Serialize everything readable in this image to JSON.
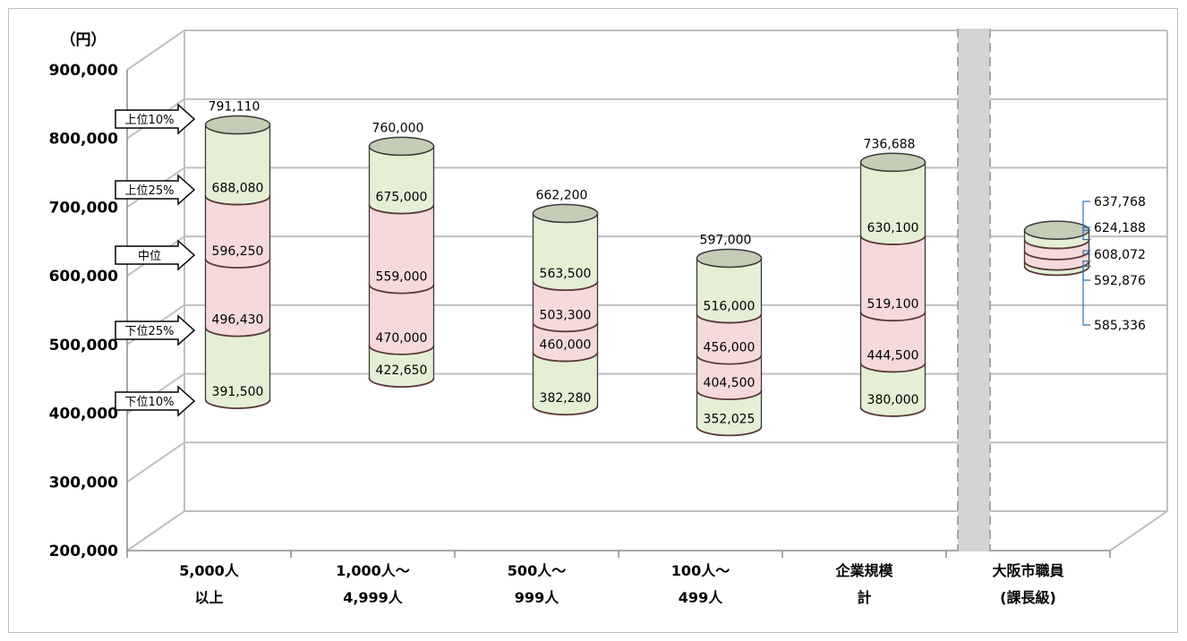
{
  "chart_data": {
    "type": "bar",
    "unit_label": "（円）",
    "yticks": [
      "900,000",
      "800,000",
      "700,000",
      "600,000",
      "500,000",
      "400,000",
      "300,000",
      "200,000"
    ],
    "ylim": [
      200000,
      900000
    ],
    "grid": true,
    "categories": [
      {
        "line1": "5,000人",
        "line2": "以上"
      },
      {
        "line1": "1,000人～",
        "line2": "4,999人"
      },
      {
        "line1": "500人～",
        "line2": "999人"
      },
      {
        "line1": "100人～",
        "line2": "499人"
      },
      {
        "line1": "企業規模",
        "line2": "計"
      },
      {
        "line1": "大阪市職員",
        "line2": "(課長級)"
      }
    ],
    "series": [
      {
        "name": "上位10%",
        "values": [
          791110,
          760000,
          662200,
          597000,
          736688,
          637768
        ]
      },
      {
        "name": "上位25%",
        "values": [
          688080,
          675000,
          563500,
          516000,
          630100,
          624188
        ]
      },
      {
        "name": "中位",
        "values": [
          596250,
          559000,
          503300,
          456000,
          519100,
          608072
        ]
      },
      {
        "name": "下位25%",
        "values": [
          496430,
          470000,
          460000,
          404500,
          444500,
          592876
        ]
      },
      {
        "name": "下位10%",
        "values": [
          391500,
          422650,
          382280,
          352025,
          380000,
          585336
        ]
      }
    ],
    "value_labels": [
      [
        "791,110",
        "688,080",
        "596,250",
        "496,430",
        "391,500"
      ],
      [
        "760,000",
        "675,000",
        "559,000",
        "470,000",
        "422,650"
      ],
      [
        "662,200",
        "563,500",
        "503,300",
        "460,000",
        "382,280"
      ],
      [
        "597,000",
        "516,000",
        "456,000",
        "404,500",
        "352,025"
      ],
      [
        "736,688",
        "630,100",
        "519,100",
        "444,500",
        "380,000"
      ],
      [
        "637,768",
        "624,188",
        "608,072",
        "592,876",
        "585,336"
      ]
    ],
    "percentile_markers": [
      "上位10%",
      "上位25%",
      "中位",
      "下位25%",
      "下位10%"
    ],
    "colors": {
      "outer_band": "#e5efd5",
      "inner_band": "#f6dadb",
      "top_cap": "#c6cdb6",
      "grid": "#bfbfbf",
      "separator": "#d4d4d4",
      "leader": "#2e6fb0"
    }
  }
}
